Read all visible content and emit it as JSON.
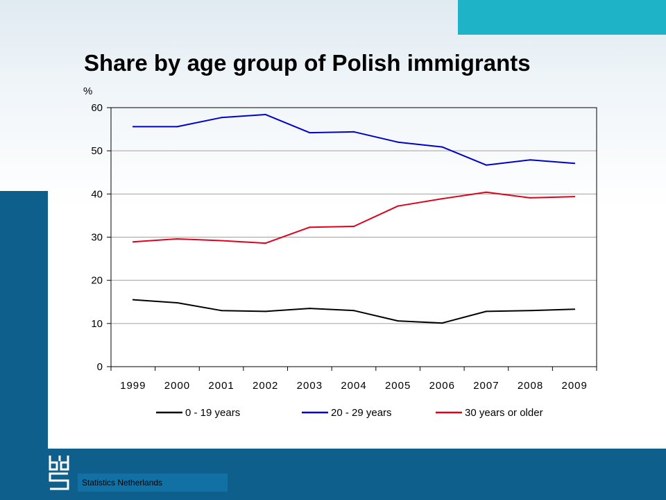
{
  "slide": {
    "title": "Share by age group of Polish immigrants",
    "footer_text": "Statistics Netherlands",
    "colors": {
      "band": "#0f5f8c",
      "accent": "#1fb3c8"
    },
    "logo_icon": "cbs-logo-icon"
  },
  "chart_data": {
    "type": "line",
    "title": "Share by age group of Polish immigrants",
    "ylabel": "%",
    "xlabel": "",
    "ylim": [
      0,
      60
    ],
    "yticks": [
      0,
      10,
      20,
      30,
      40,
      50,
      60
    ],
    "grid": true,
    "legend_position": "bottom",
    "x": [
      "1999",
      "2000",
      "2001",
      "2002",
      "2003",
      "2004",
      "2005",
      "2006",
      "2007",
      "2008",
      "2009"
    ],
    "series": [
      {
        "name": "0 - 19 years",
        "color": "#000000",
        "values": [
          15.5,
          14.8,
          13.0,
          12.8,
          13.5,
          13.0,
          10.6,
          10.1,
          12.8,
          13.0,
          13.3
        ]
      },
      {
        "name": "20 - 29  years",
        "color": "#0000cc",
        "values": [
          55.6,
          55.6,
          57.7,
          58.4,
          54.2,
          54.4,
          52.0,
          50.9,
          46.7,
          47.9,
          47.1
        ]
      },
      {
        "name": "30 years or older",
        "color": "#e0001b",
        "values": [
          28.9,
          29.6,
          29.2,
          28.6,
          32.3,
          32.5,
          37.2,
          38.9,
          40.4,
          39.1,
          39.4
        ]
      }
    ]
  }
}
